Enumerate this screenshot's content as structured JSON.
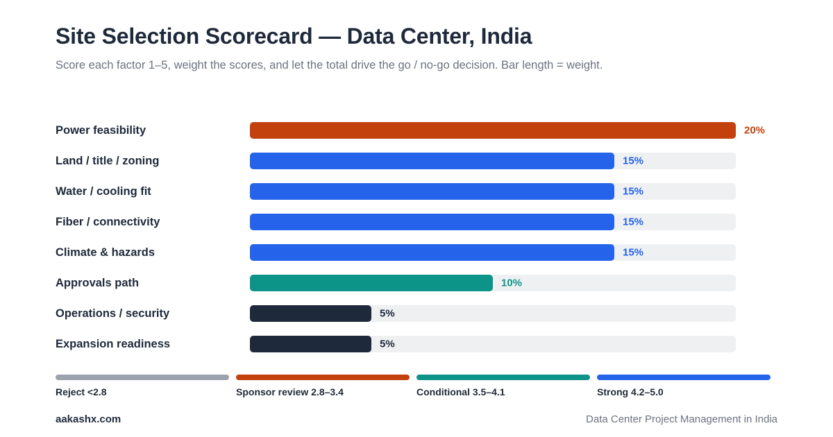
{
  "header": {
    "title": "Site Selection Scorecard — Data Center, India",
    "subtitle": "Score each factor 1–5, weight the scores, and let the total drive the go / no-go decision. Bar length = weight."
  },
  "chart_data": {
    "type": "bar",
    "orientation": "horizontal",
    "title": "Site Selection Scorecard — Data Center, India",
    "categories": [
      "Power feasibility",
      "Land / title / zoning",
      "Water / cooling fit",
      "Fiber / connectivity",
      "Climate & hazards",
      "Approvals path",
      "Operations / security",
      "Expansion readiness"
    ],
    "values": [
      20,
      15,
      15,
      15,
      15,
      10,
      5,
      5
    ],
    "value_labels": [
      "20%",
      "15%",
      "15%",
      "15%",
      "15%",
      "10%",
      "5%",
      "5%"
    ],
    "bar_colors": [
      "#c2410c",
      "#2563eb",
      "#2563eb",
      "#2563eb",
      "#2563eb",
      "#0d9488",
      "#1e293b",
      "#1e293b"
    ],
    "label_colors": [
      "#c2410c",
      "#2563eb",
      "#2563eb",
      "#2563eb",
      "#2563eb",
      "#0d9488",
      "#1e293b",
      "#1e293b"
    ],
    "track_color": "#eef0f2",
    "xlim": [
      0,
      20
    ],
    "grid": false
  },
  "legend": [
    {
      "label": "Reject <2.8",
      "color": "#9ca3af"
    },
    {
      "label": "Sponsor review 2.8–3.4",
      "color": "#c2410c"
    },
    {
      "label": "Conditional 3.5–4.1",
      "color": "#0d9488"
    },
    {
      "label": "Strong 4.2–5.0",
      "color": "#2563eb"
    }
  ],
  "footer": {
    "site": "aakashx.com",
    "caption": "Data Center Project Management in India"
  }
}
